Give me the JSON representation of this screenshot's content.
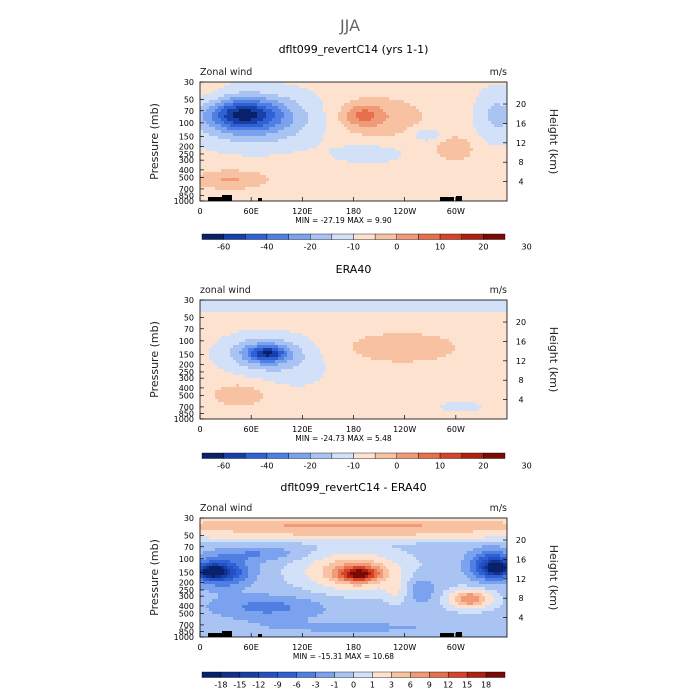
{
  "figure": {
    "title": "JJA"
  },
  "chart_data": [
    {
      "type": "heatmap",
      "title": "dflt099_revertC14 (yrs 1-1)",
      "left_label": "Zonal wind",
      "units": "m/s",
      "ylabel": "Pressure (mb)",
      "ylabel_right": "Height (km)",
      "pressure_ticks": [
        "30",
        "50",
        "70",
        "100",
        "150",
        "200",
        "250",
        "300",
        "400",
        "500",
        "700",
        "850",
        "1000"
      ],
      "height_ticks": [
        "4",
        "8",
        "12",
        "16",
        "20"
      ],
      "x_ticks": [
        "0",
        "60E",
        "120E",
        "180",
        "120W",
        "60W"
      ],
      "stats": "MIN = -27.19   MAX =    9.90",
      "colorbar": {
        "labels": [
          "-60",
          "-40",
          "-20",
          "-10",
          "0",
          "10",
          "20",
          "30"
        ],
        "colors": [
          "#08216a",
          "#173fa8",
          "#2f60d4",
          "#4f7fe3",
          "#7aa2ee",
          "#a9c4f3",
          "#d3e1f8",
          "#fde3cf",
          "#f8c1a1",
          "#f19a77",
          "#e76f4c",
          "#d5442a",
          "#b02010",
          "#7a0a05"
        ]
      },
      "fields": [
        {
          "x": 0.18,
          "y": 0.31,
          "rx": 0.2,
          "ry": 0.22,
          "v": -0.45
        },
        {
          "x": 0.14,
          "y": 0.27,
          "rx": 0.11,
          "ry": 0.12,
          "v": -0.6
        },
        {
          "x": 0.97,
          "y": 0.28,
          "rx": 0.07,
          "ry": 0.22,
          "v": -0.25
        },
        {
          "x": 0.55,
          "y": 0.6,
          "rx": 0.12,
          "ry": 0.09,
          "v": -0.15
        },
        {
          "x": 0.74,
          "y": 0.44,
          "rx": 0.05,
          "ry": 0.06,
          "v": -0.2
        },
        {
          "x": 0.58,
          "y": 0.3,
          "rx": 0.16,
          "ry": 0.18,
          "v": 0.2
        },
        {
          "x": 0.53,
          "y": 0.28,
          "rx": 0.06,
          "ry": 0.09,
          "v": 0.3
        },
        {
          "x": 0.83,
          "y": 0.56,
          "rx": 0.06,
          "ry": 0.1,
          "v": 0.22
        },
        {
          "x": 0.1,
          "y": 0.82,
          "rx": 0.12,
          "ry": 0.08,
          "v": 0.25
        },
        {
          "x": 0.03,
          "y": 0.12,
          "rx": 0.06,
          "ry": 0.12,
          "v": 0.07
        }
      ]
    },
    {
      "type": "heatmap",
      "title": "ERA40",
      "left_label": "zonal wind",
      "units": "m/s",
      "ylabel": "Pressure (mb)",
      "ylabel_right": "Height (km)",
      "pressure_ticks": [
        "30",
        "50",
        "70",
        "100",
        "150",
        "200",
        "250",
        "300",
        "400",
        "500",
        "700",
        "850",
        "1000"
      ],
      "height_ticks": [
        "4",
        "8",
        "12",
        "16",
        "20"
      ],
      "x_ticks": [
        "0",
        "60E",
        "120E",
        "180",
        "120W",
        "60W"
      ],
      "stats": "MIN = -24.73   MAX =    5.48",
      "colorbar": {
        "labels": [
          "-60",
          "-40",
          "-20",
          "-10",
          "0",
          "10",
          "20",
          "30"
        ],
        "colors": [
          "#08216a",
          "#173fa8",
          "#2f60d4",
          "#4f7fe3",
          "#7aa2ee",
          "#a9c4f3",
          "#d3e1f8",
          "#fde3cf",
          "#f8c1a1",
          "#f19a77",
          "#e76f4c",
          "#d5442a",
          "#b02010",
          "#7a0a05"
        ]
      },
      "fields": [
        {
          "x": 0.5,
          "y": 0.05,
          "rx": 0.8,
          "ry": 0.07,
          "v": -0.12
        },
        {
          "x": 0.21,
          "y": 0.45,
          "rx": 0.13,
          "ry": 0.15,
          "v": -0.42
        },
        {
          "x": 0.22,
          "y": 0.45,
          "rx": 0.06,
          "ry": 0.06,
          "v": -0.55
        },
        {
          "x": 0.32,
          "y": 0.6,
          "rx": 0.12,
          "ry": 0.2,
          "v": -0.08
        },
        {
          "x": 0.66,
          "y": 0.4,
          "rx": 0.2,
          "ry": 0.14,
          "v": 0.18
        },
        {
          "x": 0.13,
          "y": 0.8,
          "rx": 0.09,
          "ry": 0.1,
          "v": 0.2
        },
        {
          "x": 0.85,
          "y": 0.9,
          "rx": 0.1,
          "ry": 0.06,
          "v": -0.1
        }
      ]
    },
    {
      "type": "heatmap",
      "title": "dflt099_revertC14 - ERA40",
      "left_label": "Zonal wind",
      "units": "m/s",
      "ylabel": "Pressure (mb)",
      "ylabel_right": "Height (km)",
      "pressure_ticks": [
        "30",
        "50",
        "70",
        "100",
        "150",
        "200",
        "250",
        "300",
        "400",
        "500",
        "700",
        "850",
        "1000"
      ],
      "height_ticks": [
        "4",
        "8",
        "12",
        "16",
        "20"
      ],
      "x_ticks": [
        "0",
        "60E",
        "120E",
        "180",
        "120W",
        "60W"
      ],
      "stats": "MIN = -15.31   MAX =   10.68",
      "colorbar": {
        "labels": [
          "-18",
          "-15",
          "-12",
          "-9",
          "-6",
          "-3",
          "-1",
          "0",
          "1",
          "3",
          "6",
          "9",
          "12",
          "15",
          "18"
        ],
        "colors": [
          "#08216a",
          "#122f8c",
          "#173fa8",
          "#2350c4",
          "#2f60d4",
          "#4f7fe3",
          "#7aa2ee",
          "#a9c4f3",
          "#d3e1f8",
          "#fde3cf",
          "#f8c1a1",
          "#f19a77",
          "#e76f4c",
          "#d5442a",
          "#b02010",
          "#7a0a05"
        ]
      },
      "fields": [
        {
          "x": 0.5,
          "y": 0.06,
          "rx": 0.9,
          "ry": 0.07,
          "v": 0.45
        },
        {
          "x": 0.5,
          "y": 0.15,
          "rx": 0.9,
          "ry": 0.05,
          "v": 0.2
        },
        {
          "x": 0.07,
          "y": 0.45,
          "rx": 0.09,
          "ry": 0.12,
          "v": -0.55
        },
        {
          "x": 0.04,
          "y": 0.45,
          "rx": 0.04,
          "ry": 0.05,
          "v": -0.8
        },
        {
          "x": 0.95,
          "y": 0.4,
          "rx": 0.07,
          "ry": 0.12,
          "v": -0.6
        },
        {
          "x": 0.97,
          "y": 0.42,
          "rx": 0.03,
          "ry": 0.05,
          "v": -0.85
        },
        {
          "x": 0.2,
          "y": 0.3,
          "rx": 0.12,
          "ry": 0.06,
          "v": -0.2
        },
        {
          "x": 0.5,
          "y": 0.45,
          "rx": 0.16,
          "ry": 0.16,
          "v": 0.45
        },
        {
          "x": 0.52,
          "y": 0.47,
          "rx": 0.06,
          "ry": 0.06,
          "v": 0.65
        },
        {
          "x": 0.88,
          "y": 0.68,
          "rx": 0.07,
          "ry": 0.08,
          "v": 0.55
        },
        {
          "x": 0.22,
          "y": 0.75,
          "rx": 0.18,
          "ry": 0.1,
          "v": -0.25
        },
        {
          "x": 0.72,
          "y": 0.6,
          "rx": 0.05,
          "ry": 0.12,
          "v": -0.2
        },
        {
          "x": 0.64,
          "y": 0.62,
          "rx": 0.04,
          "ry": 0.1,
          "v": 0.15
        },
        {
          "x": 0.5,
          "y": 0.92,
          "rx": 0.4,
          "ry": 0.06,
          "v": -0.1
        }
      ]
    }
  ]
}
